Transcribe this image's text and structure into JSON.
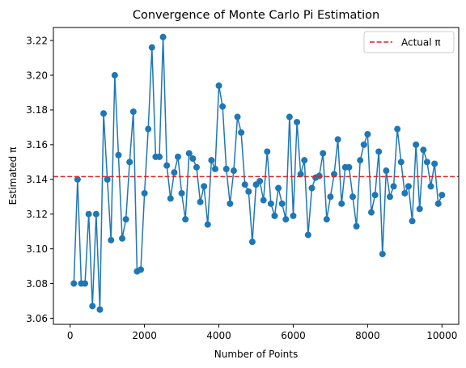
{
  "chart_data": {
    "type": "line",
    "title": "Convergence of Monte Carlo Pi Estimation",
    "xlabel": "Number of Points",
    "ylabel": "Estimated π",
    "xlim": [
      -450,
      10450
    ],
    "ylim": [
      3.0565,
      3.2275
    ],
    "x_ticks": [
      0,
      2000,
      4000,
      6000,
      8000,
      10000
    ],
    "y_ticks": [
      3.06,
      3.08,
      3.1,
      3.12,
      3.14,
      3.16,
      3.18,
      3.2,
      3.22
    ],
    "y_tick_labels": [
      "3.06",
      "3.08",
      "3.10",
      "3.12",
      "3.14",
      "3.16",
      "3.18",
      "3.20",
      "3.22"
    ],
    "grid": false,
    "legend_position": "top-right",
    "series": [
      {
        "name": "",
        "color": "#1f77b4",
        "marker": "circle",
        "x": [
          100,
          200,
          300,
          400,
          500,
          600,
          700,
          800,
          900,
          1000,
          1100,
          1200,
          1300,
          1400,
          1500,
          1600,
          1700,
          1800,
          1900,
          2000,
          2100,
          2200,
          2300,
          2400,
          2500,
          2600,
          2700,
          2800,
          2900,
          3000,
          3100,
          3200,
          3300,
          3400,
          3500,
          3600,
          3700,
          3800,
          3900,
          4000,
          4100,
          4200,
          4300,
          4400,
          4500,
          4600,
          4700,
          4800,
          4900,
          5000,
          5100,
          5200,
          5300,
          5400,
          5500,
          5600,
          5700,
          5800,
          5900,
          6000,
          6100,
          6200,
          6300,
          6400,
          6500,
          6600,
          6700,
          6800,
          6900,
          7000,
          7100,
          7200,
          7300,
          7400,
          7500,
          7600,
          7700,
          7800,
          7900,
          8000,
          8100,
          8200,
          8300,
          8400,
          8500,
          8600,
          8700,
          8800,
          8900,
          9000,
          9100,
          9200,
          9300,
          9400,
          9500,
          9600,
          9700,
          9800,
          9900,
          10000
        ],
        "y": [
          3.08,
          3.14,
          3.08,
          3.08,
          3.12,
          3.067,
          3.12,
          3.065,
          3.178,
          3.14,
          3.105,
          3.2,
          3.154,
          3.106,
          3.117,
          3.15,
          3.179,
          3.087,
          3.088,
          3.132,
          3.169,
          3.216,
          3.153,
          3.153,
          3.222,
          3.148,
          3.129,
          3.144,
          3.153,
          3.132,
          3.117,
          3.155,
          3.152,
          3.147,
          3.127,
          3.136,
          3.114,
          3.151,
          3.146,
          3.194,
          3.182,
          3.146,
          3.126,
          3.145,
          3.176,
          3.167,
          3.137,
          3.133,
          3.104,
          3.137,
          3.139,
          3.128,
          3.156,
          3.126,
          3.119,
          3.135,
          3.126,
          3.117,
          3.176,
          3.119,
          3.173,
          3.143,
          3.151,
          3.108,
          3.135,
          3.141,
          3.142,
          3.155,
          3.117,
          3.13,
          3.143,
          3.163,
          3.126,
          3.147,
          3.147,
          3.13,
          3.113,
          3.151,
          3.16,
          3.166,
          3.121,
          3.131,
          3.156,
          3.097,
          3.145,
          3.13,
          3.136,
          3.169,
          3.15,
          3.132,
          3.136,
          3.116,
          3.16,
          3.123,
          3.157,
          3.15,
          3.136,
          3.149,
          3.126,
          3.131
        ]
      }
    ],
    "reference_line": {
      "name": "Actual π",
      "y": 3.14159,
      "color": "#d62728",
      "style": "dashed"
    }
  }
}
